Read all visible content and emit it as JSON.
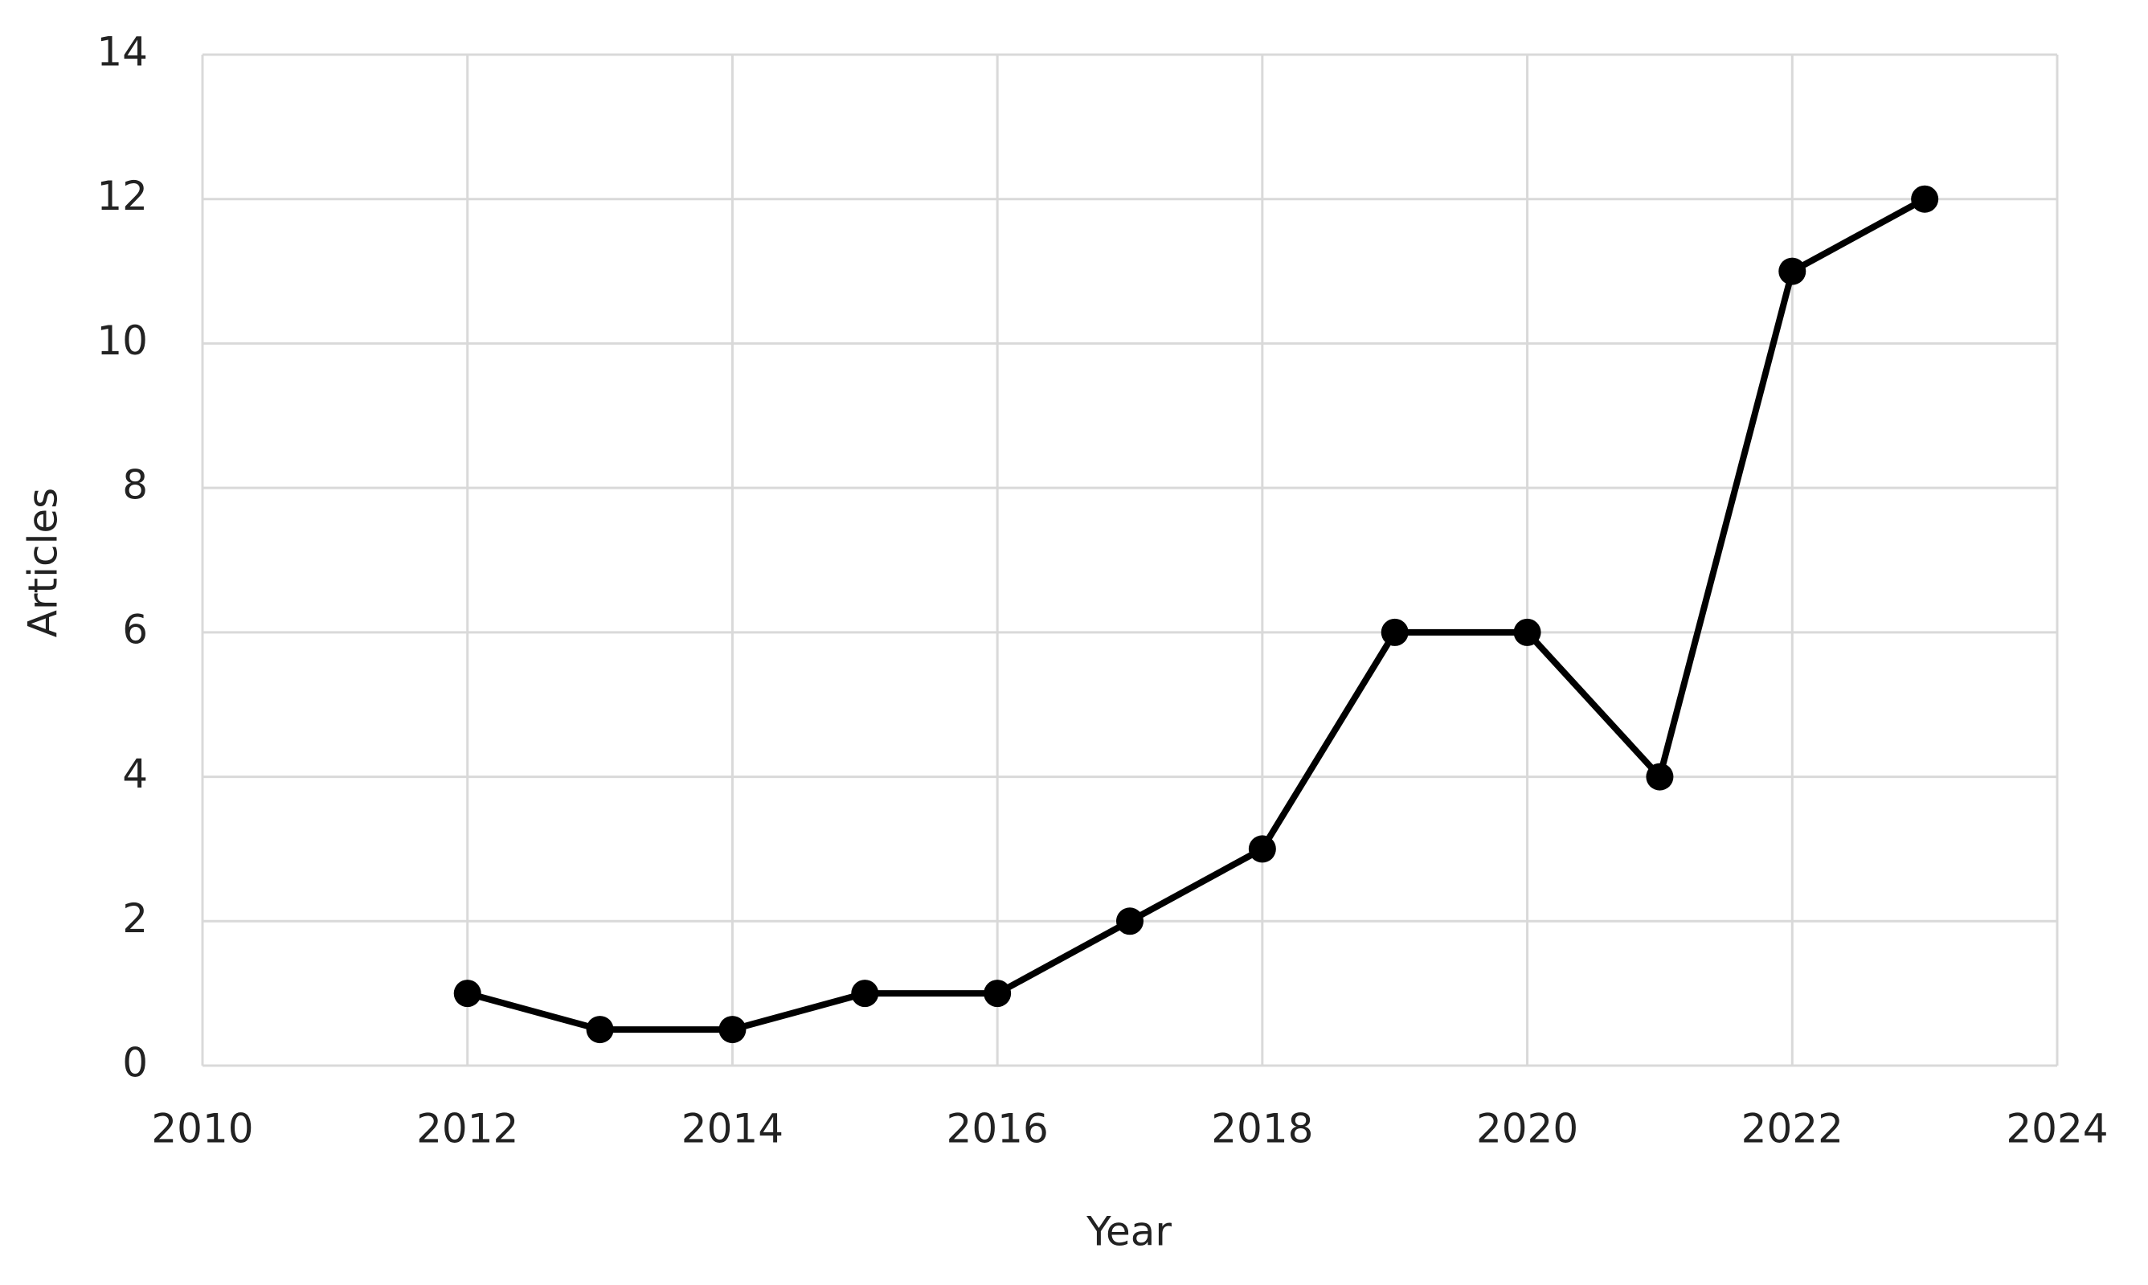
{
  "chart_data": {
    "type": "line",
    "x_label": "Year",
    "y_label": "Articles",
    "x": [
      2012,
      2013,
      2014,
      2015,
      2016,
      2017,
      2018,
      2019,
      2020,
      2021,
      2022,
      2023
    ],
    "series": [
      {
        "color": "#000000",
        "values": [
          1,
          0.5,
          0.5,
          1,
          1,
          2,
          3,
          6,
          6,
          4,
          11,
          12
        ]
      }
    ],
    "xlim": [
      2010,
      2024
    ],
    "xticks": [
      2010,
      2012,
      2014,
      2016,
      2018,
      2020,
      2022,
      2024
    ],
    "ylim": [
      0,
      14
    ],
    "yticks": [
      0,
      2,
      4,
      6,
      8,
      10,
      12,
      14
    ],
    "grid": true
  }
}
